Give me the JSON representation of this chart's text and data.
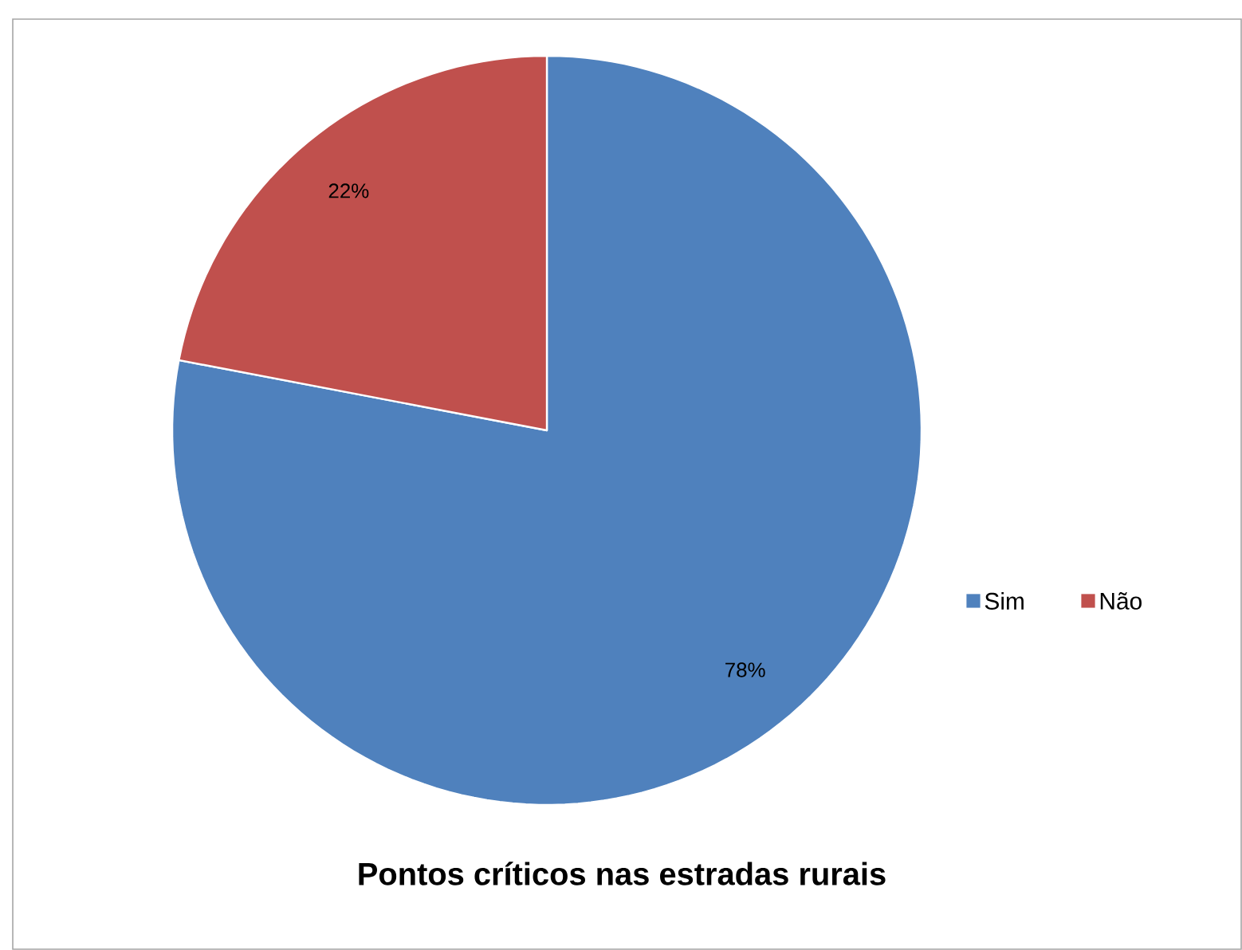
{
  "chart_data": {
    "type": "pie",
    "title": "Pontos críticos nas estradas rurais",
    "categories": [
      "Sim",
      "Não"
    ],
    "values": [
      78,
      22
    ],
    "colors": [
      "#4f81bd",
      "#c0504d"
    ],
    "value_labels": [
      "78%",
      "22%"
    ],
    "legend": "right"
  }
}
